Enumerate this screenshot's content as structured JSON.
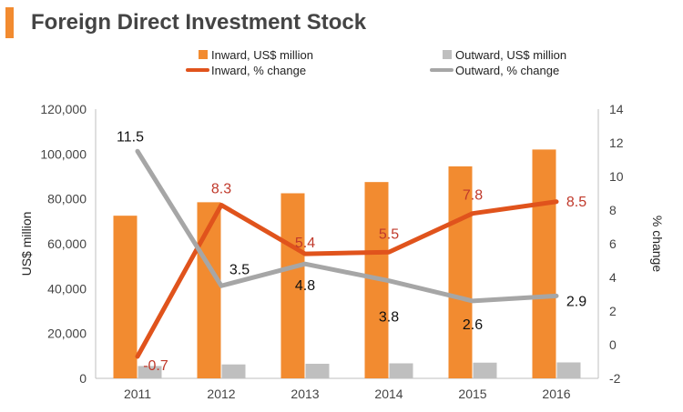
{
  "title": "Foreign Direct Investment Stock",
  "chart_data": {
    "type": "bar",
    "title": "Foreign Direct Investment Stock",
    "categories": [
      "2011",
      "2012",
      "2013",
      "2014",
      "2015",
      "2016"
    ],
    "series": [
      {
        "name": "Inward, US$ million",
        "type": "bar",
        "axis": "left",
        "color": "#f28b30",
        "values": [
          72500,
          78500,
          82500,
          87500,
          94500,
          102000
        ]
      },
      {
        "name": "Outward, US$ million",
        "type": "bar",
        "axis": "left",
        "color": "#bfbfbf",
        "values": [
          5500,
          6200,
          6500,
          6700,
          7000,
          7100
        ]
      },
      {
        "name": "Inward, % change",
        "type": "line",
        "axis": "right",
        "color": "#e0531c",
        "label_color": "#c0392b",
        "values": [
          -0.7,
          8.3,
          5.4,
          5.5,
          7.8,
          8.5
        ],
        "labels": [
          "-0.7",
          "8.3",
          "5.4",
          "5.5",
          "7.8",
          "8.5"
        ]
      },
      {
        "name": "Outward, % change",
        "type": "line",
        "axis": "right",
        "color": "#a6a6a6",
        "label_color": "#111111",
        "values": [
          11.5,
          3.5,
          4.8,
          3.8,
          2.6,
          2.9
        ],
        "labels": [
          "11.5",
          "3.5",
          "4.8",
          "3.8",
          "2.6",
          "2.9"
        ]
      }
    ],
    "ylabel": "US$ million",
    "y2label": "% change",
    "ylim": [
      0,
      120000
    ],
    "y2lim": [
      -2,
      14
    ],
    "yticks": [
      "0",
      "20,000",
      "40,000",
      "60,000",
      "80,000",
      "100,000",
      "120,000"
    ],
    "y2ticks": [
      "-2",
      "0",
      "2",
      "4",
      "6",
      "8",
      "10",
      "12",
      "14"
    ],
    "legend_position": "top"
  }
}
